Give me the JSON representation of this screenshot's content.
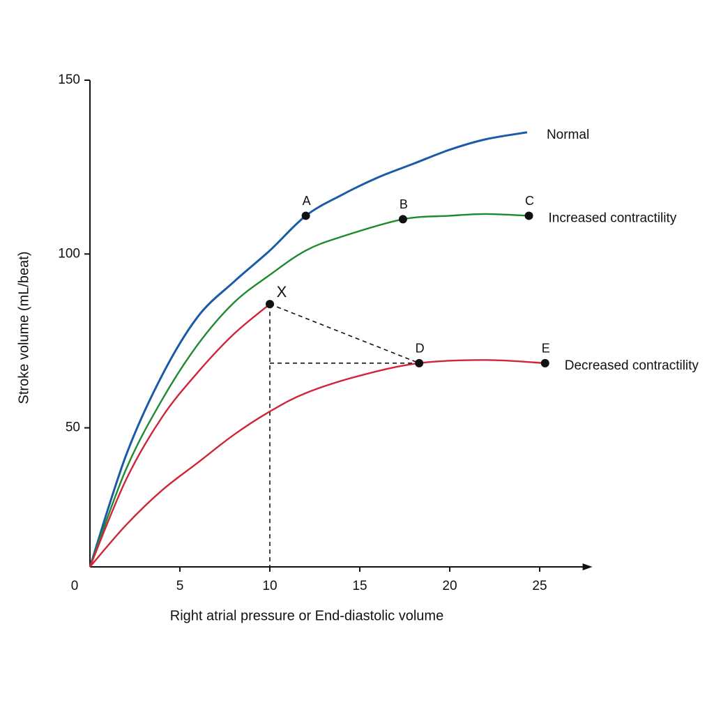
{
  "chart_data": {
    "type": "line",
    "x_label": "Right atrial pressure or End-diastolic volume",
    "y_label": "Stroke volume (mL/beat)",
    "xlim": [
      0,
      27
    ],
    "ylim": [
      10,
      150
    ],
    "xticks": [
      0,
      5,
      10,
      15,
      20,
      25
    ],
    "yticks": [
      50,
      100,
      150
    ],
    "series": [
      {
        "name": "Normal",
        "color": "#1a5aa8",
        "x": [
          0,
          2,
          4,
          6,
          8,
          10,
          12,
          14,
          16,
          18,
          20,
          22,
          24.3
        ],
        "values": [
          10,
          42,
          65,
          82,
          92,
          101,
          111,
          117,
          122,
          126,
          130,
          133,
          135
        ]
      },
      {
        "name": "Increased contractility",
        "color": "#1e8a2e",
        "x": [
          0,
          2,
          4,
          6,
          8,
          10,
          12,
          14,
          17.4,
          20,
          22,
          24.4
        ],
        "values": [
          10,
          38,
          58,
          74,
          86,
          94,
          101,
          105,
          110,
          111,
          111.5,
          111
        ]
      },
      {
        "color": "#d0243a",
        "x": [
          0,
          2,
          4,
          6,
          8,
          10
        ],
        "values": [
          10,
          35,
          53,
          66,
          77,
          85.6
        ]
      },
      {
        "name": "Decreased contractility",
        "color": "#d0243a",
        "x": [
          0,
          2,
          4,
          6,
          8,
          10,
          12,
          15,
          18.3,
          22,
          25.3
        ],
        "values": [
          10,
          22,
          32,
          40,
          48,
          54.7,
          60,
          65,
          68.6,
          69.5,
          68.6
        ]
      }
    ],
    "points": [
      {
        "label": "A",
        "x": 12,
        "y": 111
      },
      {
        "label": "B",
        "x": 17.4,
        "y": 110
      },
      {
        "label": "C",
        "x": 24.4,
        "y": 111
      },
      {
        "label": "X",
        "x": 10,
        "y": 85.6
      },
      {
        "label": "D",
        "x": 18.3,
        "y": 68.6
      },
      {
        "label": "E",
        "x": 25.3,
        "y": 68.6
      }
    ]
  }
}
